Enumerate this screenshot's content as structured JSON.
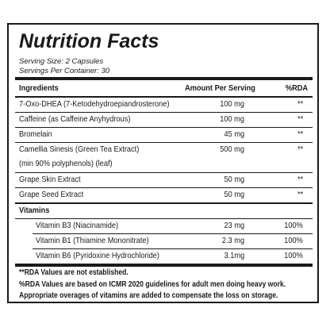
{
  "title": "Nutrition Facts",
  "serving_size": "Serving Size: 2 Capsules",
  "servings_per_container": "Servings Per Container: 30",
  "columns": {
    "ingredients": "Ingredients",
    "amount": "Amount Per Serving",
    "rda": "%RDA"
  },
  "ingredients": [
    {
      "name": "7-Oxo-DHEA (7-Ketodehydroepiandrosterone)",
      "amount": "100 mg",
      "rda": "**"
    },
    {
      "name": "Caffeine (as Caffeine Anyhydrous)",
      "amount": "100 mg",
      "rda": "**"
    },
    {
      "name": "Bromelain",
      "amount": "45 mg",
      "rda": "**"
    },
    {
      "name": "Camellia Sinesis (Green Tea Extract)",
      "name_line2": "(min 90% polyphenols) (leaf)",
      "amount": "500 mg",
      "rda": "**"
    },
    {
      "name": "Grape Skin Extract",
      "amount": "50 mg",
      "rda": "**"
    },
    {
      "name": "Grape Seed Extract",
      "amount": "50 mg",
      "rda": "**"
    }
  ],
  "vitamins_header": "Vitamins",
  "vitamins": [
    {
      "name": "Vitamin B3 (Niacinamide)",
      "amount": "23 mg",
      "rda": "100%"
    },
    {
      "name": "Vitamin B1 (Thiamine Mononitrate)",
      "amount": "2.3 mg",
      "rda": "100%"
    },
    {
      "name": "Vitamin B6 (Pyridoxine Hydrochloride)",
      "amount": "3.1mg",
      "rda": "100%"
    }
  ],
  "notes": [
    "**RDA Values are not established.",
    "%RDA Values are based on ICMR 2020 guidelines for adult men doing heavy work.",
    "Appropriate overages of vitamins are added to compensate the loss on storage."
  ]
}
